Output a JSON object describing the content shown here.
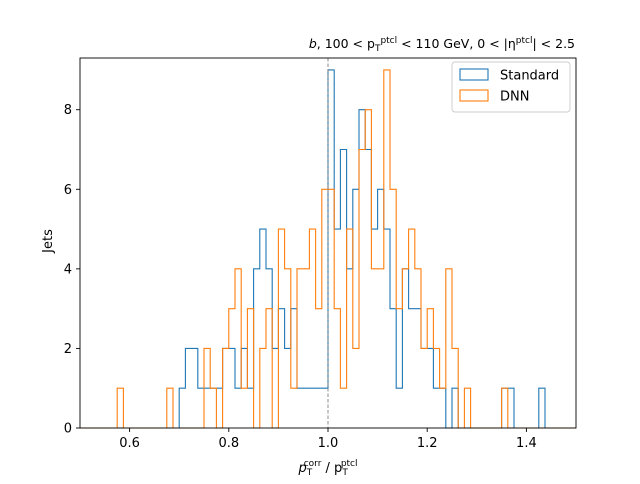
{
  "chart_data": {
    "type": "histogram",
    "title_parts": [
      "b",
      ", 100 < p",
      "T",
      "ptcl",
      " < 110 GeV, 0 < |η",
      "ptcl",
      "| < 2.5"
    ],
    "xlabel_parts": [
      "p",
      "T",
      "corr",
      " / p",
      "T",
      "ptcl"
    ],
    "ylabel": "Jets",
    "xlim": [
      0.5,
      1.5
    ],
    "ylim": [
      0,
      9.3
    ],
    "xticks": [
      0.6,
      0.8,
      1.0,
      1.2,
      1.4
    ],
    "xtick_labels": [
      "0.6",
      "0.8",
      "1.0",
      "1.2",
      "1.4"
    ],
    "yticks": [
      0,
      2,
      4,
      6,
      8
    ],
    "ytick_labels": [
      "0",
      "2",
      "4",
      "6",
      "8"
    ],
    "grid": false,
    "legend_position": "top-right",
    "reference_line_x": 1.0,
    "bin_edges_start": 0.5,
    "bin_width": 0.0125,
    "series": [
      {
        "name": "Standard",
        "color": "#1f77b4",
        "counts": [
          0,
          0,
          0,
          0,
          0,
          0,
          0,
          0,
          0,
          0,
          0,
          0,
          0,
          0,
          0,
          0,
          1,
          2,
          2,
          1,
          1,
          1,
          1,
          2,
          2,
          1,
          2,
          1,
          4,
          5,
          4,
          2,
          3,
          2,
          3,
          1,
          1,
          1,
          1,
          1,
          9,
          5,
          7,
          4,
          6,
          8,
          7,
          5,
          6,
          5,
          3,
          1,
          4,
          3,
          3,
          2,
          2,
          1,
          1,
          0,
          1,
          0,
          0,
          0,
          0,
          0,
          0,
          0,
          1,
          1,
          0,
          0,
          0,
          0,
          1,
          0,
          0,
          0,
          0,
          0
        ]
      },
      {
        "name": "DNN",
        "color": "#ff7f0e",
        "counts": [
          0,
          0,
          0,
          0,
          0,
          0,
          1,
          0,
          0,
          0,
          0,
          0,
          0,
          0,
          1,
          0,
          0,
          0,
          0,
          0,
          2,
          1,
          0,
          2,
          3,
          4,
          1,
          3,
          0,
          2,
          3,
          0,
          5,
          4,
          1,
          4,
          4,
          5,
          3,
          6,
          6,
          3,
          1,
          5,
          2,
          7,
          8,
          4,
          4,
          9,
          6,
          3,
          4,
          5,
          4,
          2,
          3,
          2,
          1,
          4,
          2,
          0,
          1,
          0,
          0,
          0,
          0,
          0,
          1,
          0,
          0,
          0,
          0,
          0,
          0,
          0,
          0,
          0,
          0,
          0
        ]
      }
    ]
  }
}
